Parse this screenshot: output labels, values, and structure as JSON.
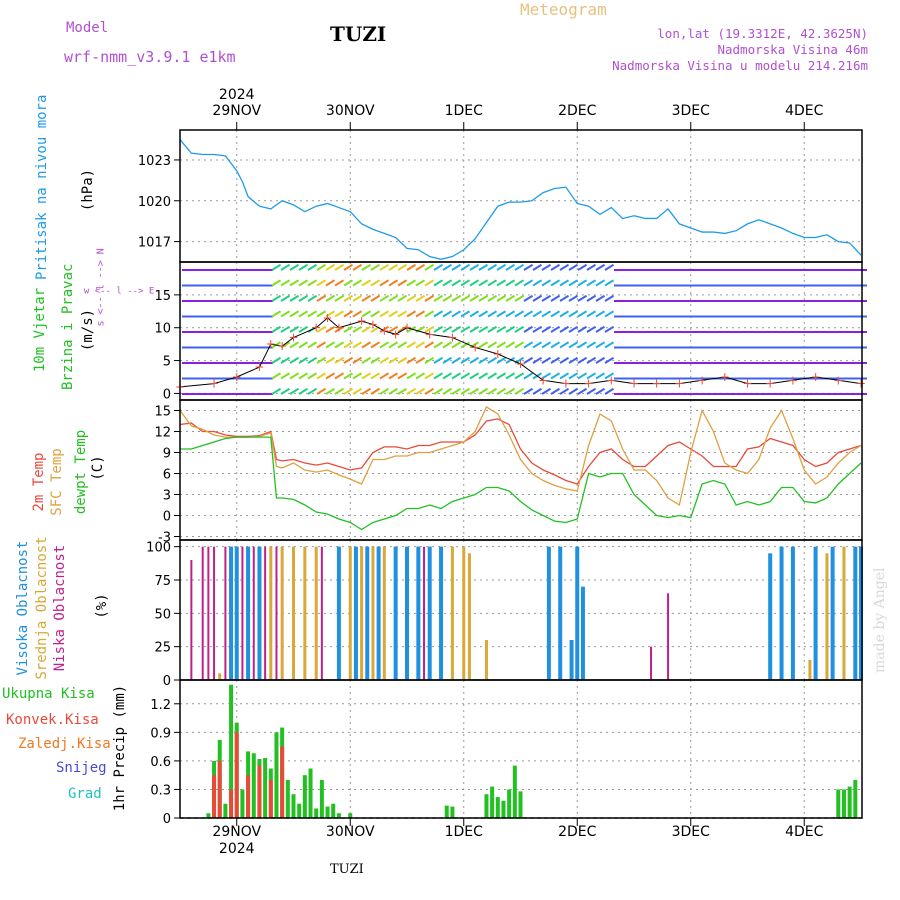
{
  "header": {
    "model_label": "Model",
    "model_version": "wrf-nmm_v3.9.1  e1km",
    "station": "TUZI",
    "title": "Meteogram",
    "lonlat": "lon,lat (19.3312E, 42.3625N)",
    "altitude": "Nadmorska Visina 46m",
    "model_altitude": "Nadmorska Visina u modelu 214.216m"
  },
  "footer": {
    "station": "TUZI",
    "watermark": "made by Angel"
  },
  "time_axis": {
    "year": "2024",
    "days": [
      "29NOV",
      "30NOV",
      "1DEC",
      "2DEC",
      "3DEC",
      "4DEC"
    ]
  },
  "colors": {
    "pressure": "#1e9be8",
    "temp2m": "#e84a3a",
    "sfc_temp": "#e0a040",
    "dewpoint": "#22c022",
    "high_cloud": "#2090e0",
    "mid_cloud": "#d8a838",
    "low_cloud": "#c0208c",
    "precip_total": "#22c022",
    "precip_conv": "#e84a3a",
    "frozen": "#f07820",
    "snow": "#4a48e0",
    "hail": "#20c0c0",
    "wind_label": "#22c022",
    "compass": "#b050d0"
  },
  "chart_data": [
    {
      "type": "line",
      "title": "",
      "ylabel_1": "Pritisak na nivou mora",
      "ylabel_2": "(hPa)",
      "yticks": [
        1017,
        1020,
        1023
      ],
      "ylim": [
        1015.5,
        1025.2
      ],
      "grid": true,
      "series": [
        {
          "name": "Pritisak na nivou mora",
          "x": [
            0.0,
            0.1,
            0.2,
            0.3,
            0.4,
            0.5,
            0.55,
            0.6,
            0.7,
            0.8,
            0.9,
            1.0,
            1.1,
            1.2,
            1.3,
            1.4,
            1.5,
            1.6,
            1.7,
            1.8,
            1.9,
            2.0,
            2.1,
            2.2,
            2.3,
            2.4,
            2.5,
            2.6,
            2.7,
            2.8,
            2.9,
            3.0,
            3.1,
            3.2,
            3.3,
            3.4,
            3.5,
            3.6,
            3.7,
            3.8,
            3.9,
            4.0,
            4.1,
            4.2,
            4.3,
            4.4,
            4.5,
            4.6,
            4.7,
            4.8,
            4.9,
            5.0,
            5.1,
            5.2,
            5.3,
            5.4,
            5.5,
            5.6,
            5.7,
            5.8,
            5.9,
            6.0
          ],
          "values": [
            1024.5,
            1023.5,
            1023.4,
            1023.4,
            1023.3,
            1022.2,
            1021.4,
            1020.3,
            1019.6,
            1019.4,
            1020.0,
            1019.7,
            1019.2,
            1019.6,
            1019.8,
            1019.5,
            1019.2,
            1018.3,
            1017.9,
            1017.6,
            1017.3,
            1016.5,
            1016.4,
            1015.9,
            1015.7,
            1015.9,
            1016.4,
            1017.2,
            1018.4,
            1019.6,
            1019.9,
            1019.9,
            1020.0,
            1020.6,
            1020.9,
            1021.0,
            1019.8,
            1019.6,
            1019.0,
            1019.5,
            1018.7,
            1018.9,
            1018.7,
            1018.7,
            1019.4,
            1018.3,
            1018.0,
            1017.7,
            1017.7,
            1017.6,
            1017.8,
            1018.3,
            1018.6,
            1018.3,
            1018.0,
            1017.6,
            1017.3,
            1017.3,
            1017.5,
            1017.0,
            1016.9,
            1016.0
          ]
        }
      ]
    },
    {
      "type": "wind_barbs",
      "ylabel_1": "10m Vjetar",
      "ylabel_2": "Brzina i Pravac",
      "ylabel_3": "(m/s)",
      "compass": "w <-- l --> E",
      "compass_sn": "s <-- l --> N",
      "yticks": [
        0,
        5,
        10,
        15
      ],
      "ylim": [
        -1,
        20
      ],
      "grid": true,
      "series": [
        {
          "name": "Brzina",
          "x": [
            0.0,
            0.3,
            0.5,
            0.7,
            0.8,
            0.9,
            1.0,
            1.2,
            1.3,
            1.4,
            1.6,
            1.7,
            1.8,
            1.9,
            2.0,
            2.2,
            2.4,
            2.6,
            2.8,
            3.0,
            3.2,
            3.4,
            3.6,
            3.8,
            4.0,
            4.2,
            4.4,
            4.6,
            4.8,
            5.0,
            5.2,
            5.4,
            5.6,
            5.8,
            6.0
          ],
          "values": [
            1.0,
            1.5,
            2.5,
            4.0,
            7.5,
            7.2,
            8.5,
            10.0,
            11.5,
            10.0,
            11.0,
            10.5,
            9.5,
            9.0,
            10.0,
            9.0,
            8.5,
            7.0,
            6.0,
            4.5,
            2.0,
            1.5,
            1.5,
            2.0,
            1.5,
            1.5,
            1.5,
            2.0,
            2.5,
            1.5,
            1.5,
            2.0,
            2.5,
            2.0,
            1.5
          ]
        }
      ]
    },
    {
      "type": "line",
      "ylabel_1": "2m Temp",
      "ylabel_2": "SFC Temp",
      "ylabel_3": "dewpt Temp",
      "ylabel_4": "(C)",
      "yticks": [
        -3,
        0,
        3,
        6,
        9,
        12,
        15
      ],
      "ylim": [
        -3.5,
        16.5
      ],
      "grid": true,
      "x": [
        0.0,
        0.1,
        0.2,
        0.3,
        0.4,
        0.5,
        0.6,
        0.7,
        0.8,
        0.85,
        0.9,
        1.0,
        1.1,
        1.2,
        1.3,
        1.4,
        1.5,
        1.6,
        1.7,
        1.8,
        1.9,
        2.0,
        2.1,
        2.2,
        2.3,
        2.4,
        2.5,
        2.6,
        2.7,
        2.8,
        2.9,
        3.0,
        3.1,
        3.2,
        3.3,
        3.4,
        3.5,
        3.6,
        3.7,
        3.8,
        3.9,
        4.0,
        4.1,
        4.2,
        4.3,
        4.4,
        4.5,
        4.6,
        4.7,
        4.8,
        4.9,
        5.0,
        5.1,
        5.2,
        5.3,
        5.4,
        5.5,
        5.6,
        5.7,
        5.8,
        5.9,
        6.0
      ],
      "series": [
        {
          "name": "2m Temp",
          "values": [
            13.0,
            13.2,
            12.0,
            12.0,
            11.5,
            11.3,
            11.3,
            11.4,
            12.0,
            8.0,
            7.8,
            8.0,
            7.5,
            7.2,
            7.5,
            7.0,
            6.5,
            6.8,
            9.0,
            9.8,
            9.8,
            9.5,
            10.0,
            10.0,
            10.5,
            10.5,
            10.5,
            11.5,
            13.5,
            13.8,
            13.0,
            9.5,
            7.5,
            6.5,
            5.8,
            5.0,
            4.5,
            7.0,
            9.0,
            9.5,
            8.0,
            7.0,
            7.0,
            8.5,
            10.0,
            10.5,
            9.5,
            8.5,
            7.0,
            7.0,
            7.0,
            9.5,
            9.8,
            11.0,
            10.5,
            10.0,
            8.0,
            7.0,
            7.5,
            9.0,
            9.5,
            10.0
          ]
        },
        {
          "name": "SFC Temp",
          "values": [
            15.0,
            12.8,
            12.3,
            11.5,
            11.2,
            11.2,
            11.2,
            11.3,
            11.8,
            7.0,
            6.8,
            7.5,
            6.5,
            6.2,
            6.5,
            5.8,
            5.2,
            4.5,
            8.0,
            8.0,
            8.5,
            8.5,
            9.0,
            9.0,
            9.5,
            10.0,
            10.5,
            12.0,
            15.5,
            14.5,
            11.5,
            8.0,
            6.0,
            5.0,
            4.3,
            3.8,
            3.5,
            10.0,
            14.5,
            13.5,
            9.5,
            6.5,
            6.5,
            5.0,
            2.5,
            1.5,
            9.0,
            15.0,
            12.0,
            7.5,
            6.5,
            6.0,
            8.0,
            12.5,
            15.0,
            11.0,
            6.5,
            4.5,
            5.5,
            7.5,
            9.0,
            10.0
          ]
        },
        {
          "name": "dewpt Temp",
          "values": [
            9.5,
            9.5,
            10.0,
            10.5,
            11.0,
            11.2,
            11.2,
            11.2,
            11.2,
            2.5,
            2.5,
            2.3,
            1.5,
            0.5,
            0.2,
            -0.5,
            -1.0,
            -2.0,
            -1.0,
            -0.5,
            0.0,
            1.0,
            1.0,
            1.5,
            1.0,
            2.0,
            2.5,
            3.0,
            4.0,
            4.0,
            3.5,
            2.0,
            0.8,
            0.0,
            -0.8,
            -1.0,
            -0.5,
            6.0,
            5.5,
            6.0,
            6.0,
            3.0,
            1.5,
            0.0,
            -0.3,
            0.0,
            -0.3,
            4.5,
            5.0,
            4.5,
            1.5,
            2.0,
            1.5,
            2.0,
            4.0,
            4.0,
            2.0,
            1.8,
            2.5,
            4.5,
            6.0,
            7.5
          ]
        }
      ]
    },
    {
      "type": "bar",
      "ylabel_1": "Visoka Oblacnost",
      "ylabel_2": "Srednja Oblacnost",
      "ylabel_3": "Niska Oblacnost",
      "ylabel_4": "(%)",
      "yticks": [
        0,
        25,
        50,
        75,
        100
      ],
      "ylim": [
        0,
        105
      ],
      "grid": true,
      "series": [
        {
          "name": "Niska Oblacnost",
          "x": [
            0.1,
            0.2,
            0.25,
            0.3,
            0.4,
            0.5,
            0.55,
            0.65,
            0.75,
            0.8,
            0.85,
            0.9,
            1.0,
            1.1,
            1.25,
            1.4,
            1.5,
            1.6,
            1.7,
            1.8,
            1.9,
            2.0,
            2.1,
            2.15,
            2.2,
            2.3,
            2.4,
            2.5,
            4.15,
            4.3,
            5.75,
            5.95,
            6.0
          ],
          "values": [
            90,
            100,
            100,
            100,
            100,
            95,
            100,
            100,
            100,
            100,
            100,
            100,
            100,
            100,
            100,
            100,
            100,
            100,
            100,
            100,
            100,
            100,
            100,
            100,
            100,
            100,
            100,
            100,
            25,
            65,
            95,
            100,
            100
          ]
        },
        {
          "name": "Srednja Oblacnost",
          "x": [
            0.35,
            0.45,
            0.5,
            0.6,
            0.7,
            0.8,
            0.9,
            1.0,
            1.1,
            1.2,
            1.4,
            1.5,
            1.6,
            1.7,
            1.8,
            1.9,
            2.0,
            2.1,
            2.2,
            2.3,
            2.4,
            2.5,
            2.55,
            2.7,
            5.55,
            5.7,
            5.85
          ],
          "values": [
            5,
            100,
            100,
            100,
            100,
            100,
            100,
            100,
            100,
            100,
            100,
            100,
            100,
            100,
            100,
            100,
            100,
            100,
            100,
            100,
            100,
            100,
            95,
            30,
            15,
            95,
            100
          ]
        },
        {
          "name": "Visoka Oblacnost",
          "x": [
            0.45,
            0.5,
            0.6,
            0.7,
            1.4,
            1.55,
            1.65,
            1.75,
            1.9,
            2.0,
            2.1,
            2.2,
            2.3,
            3.25,
            3.35,
            3.45,
            3.5,
            3.55,
            5.2,
            5.3,
            5.4,
            5.6,
            5.75,
            5.95,
            6.0
          ],
          "values": [
            100,
            100,
            100,
            100,
            100,
            100,
            100,
            100,
            100,
            100,
            100,
            100,
            100,
            100,
            100,
            30,
            100,
            70,
            95,
            100,
            100,
            100,
            100,
            100,
            100
          ]
        }
      ]
    },
    {
      "type": "bar",
      "ylabel_1": "Ukupna Kisa",
      "ylabel_2": "Konvek.Kisa",
      "ylabel_3": "Zaledj.Kisa",
      "ylabel_4": "Snijeg",
      "ylabel_5": "Grad",
      "ylabel_6": "1hr Precip (mm)",
      "yticks": [
        0,
        0.3,
        0.6,
        0.9,
        1.2
      ],
      "ylim": [
        0,
        1.45
      ],
      "grid": true,
      "series": [
        {
          "name": "Ukupna Kisa",
          "x": [
            0.25,
            0.3,
            0.35,
            0.4,
            0.45,
            0.5,
            0.55,
            0.6,
            0.65,
            0.7,
            0.75,
            0.8,
            0.85,
            0.9,
            0.95,
            1.0,
            1.05,
            1.1,
            1.15,
            1.2,
            1.25,
            1.3,
            1.35,
            1.4,
            1.5,
            2.35,
            2.4,
            2.7,
            2.75,
            2.8,
            2.85,
            2.9,
            2.95,
            3.0,
            5.8,
            5.85,
            5.9,
            5.95
          ],
          "values": [
            0.05,
            0.6,
            0.82,
            0.15,
            1.4,
            1.0,
            0.3,
            0.7,
            0.68,
            0.62,
            0.63,
            0.52,
            0.9,
            0.95,
            0.4,
            0.25,
            0.15,
            0.45,
            0.52,
            0.1,
            0.4,
            0.12,
            0.15,
            0.05,
            0.05,
            0.13,
            0.12,
            0.25,
            0.33,
            0.22,
            0.18,
            0.3,
            0.55,
            0.28,
            0.3,
            0.3,
            0.33,
            0.4
          ]
        },
        {
          "name": "Konvek.Kisa",
          "x": [
            0.3,
            0.35,
            0.45,
            0.5,
            0.6,
            0.7,
            0.8,
            0.9
          ],
          "values": [
            0.45,
            0.6,
            0.3,
            0.9,
            0.45,
            0.55,
            0.4,
            0.75
          ]
        }
      ]
    }
  ]
}
